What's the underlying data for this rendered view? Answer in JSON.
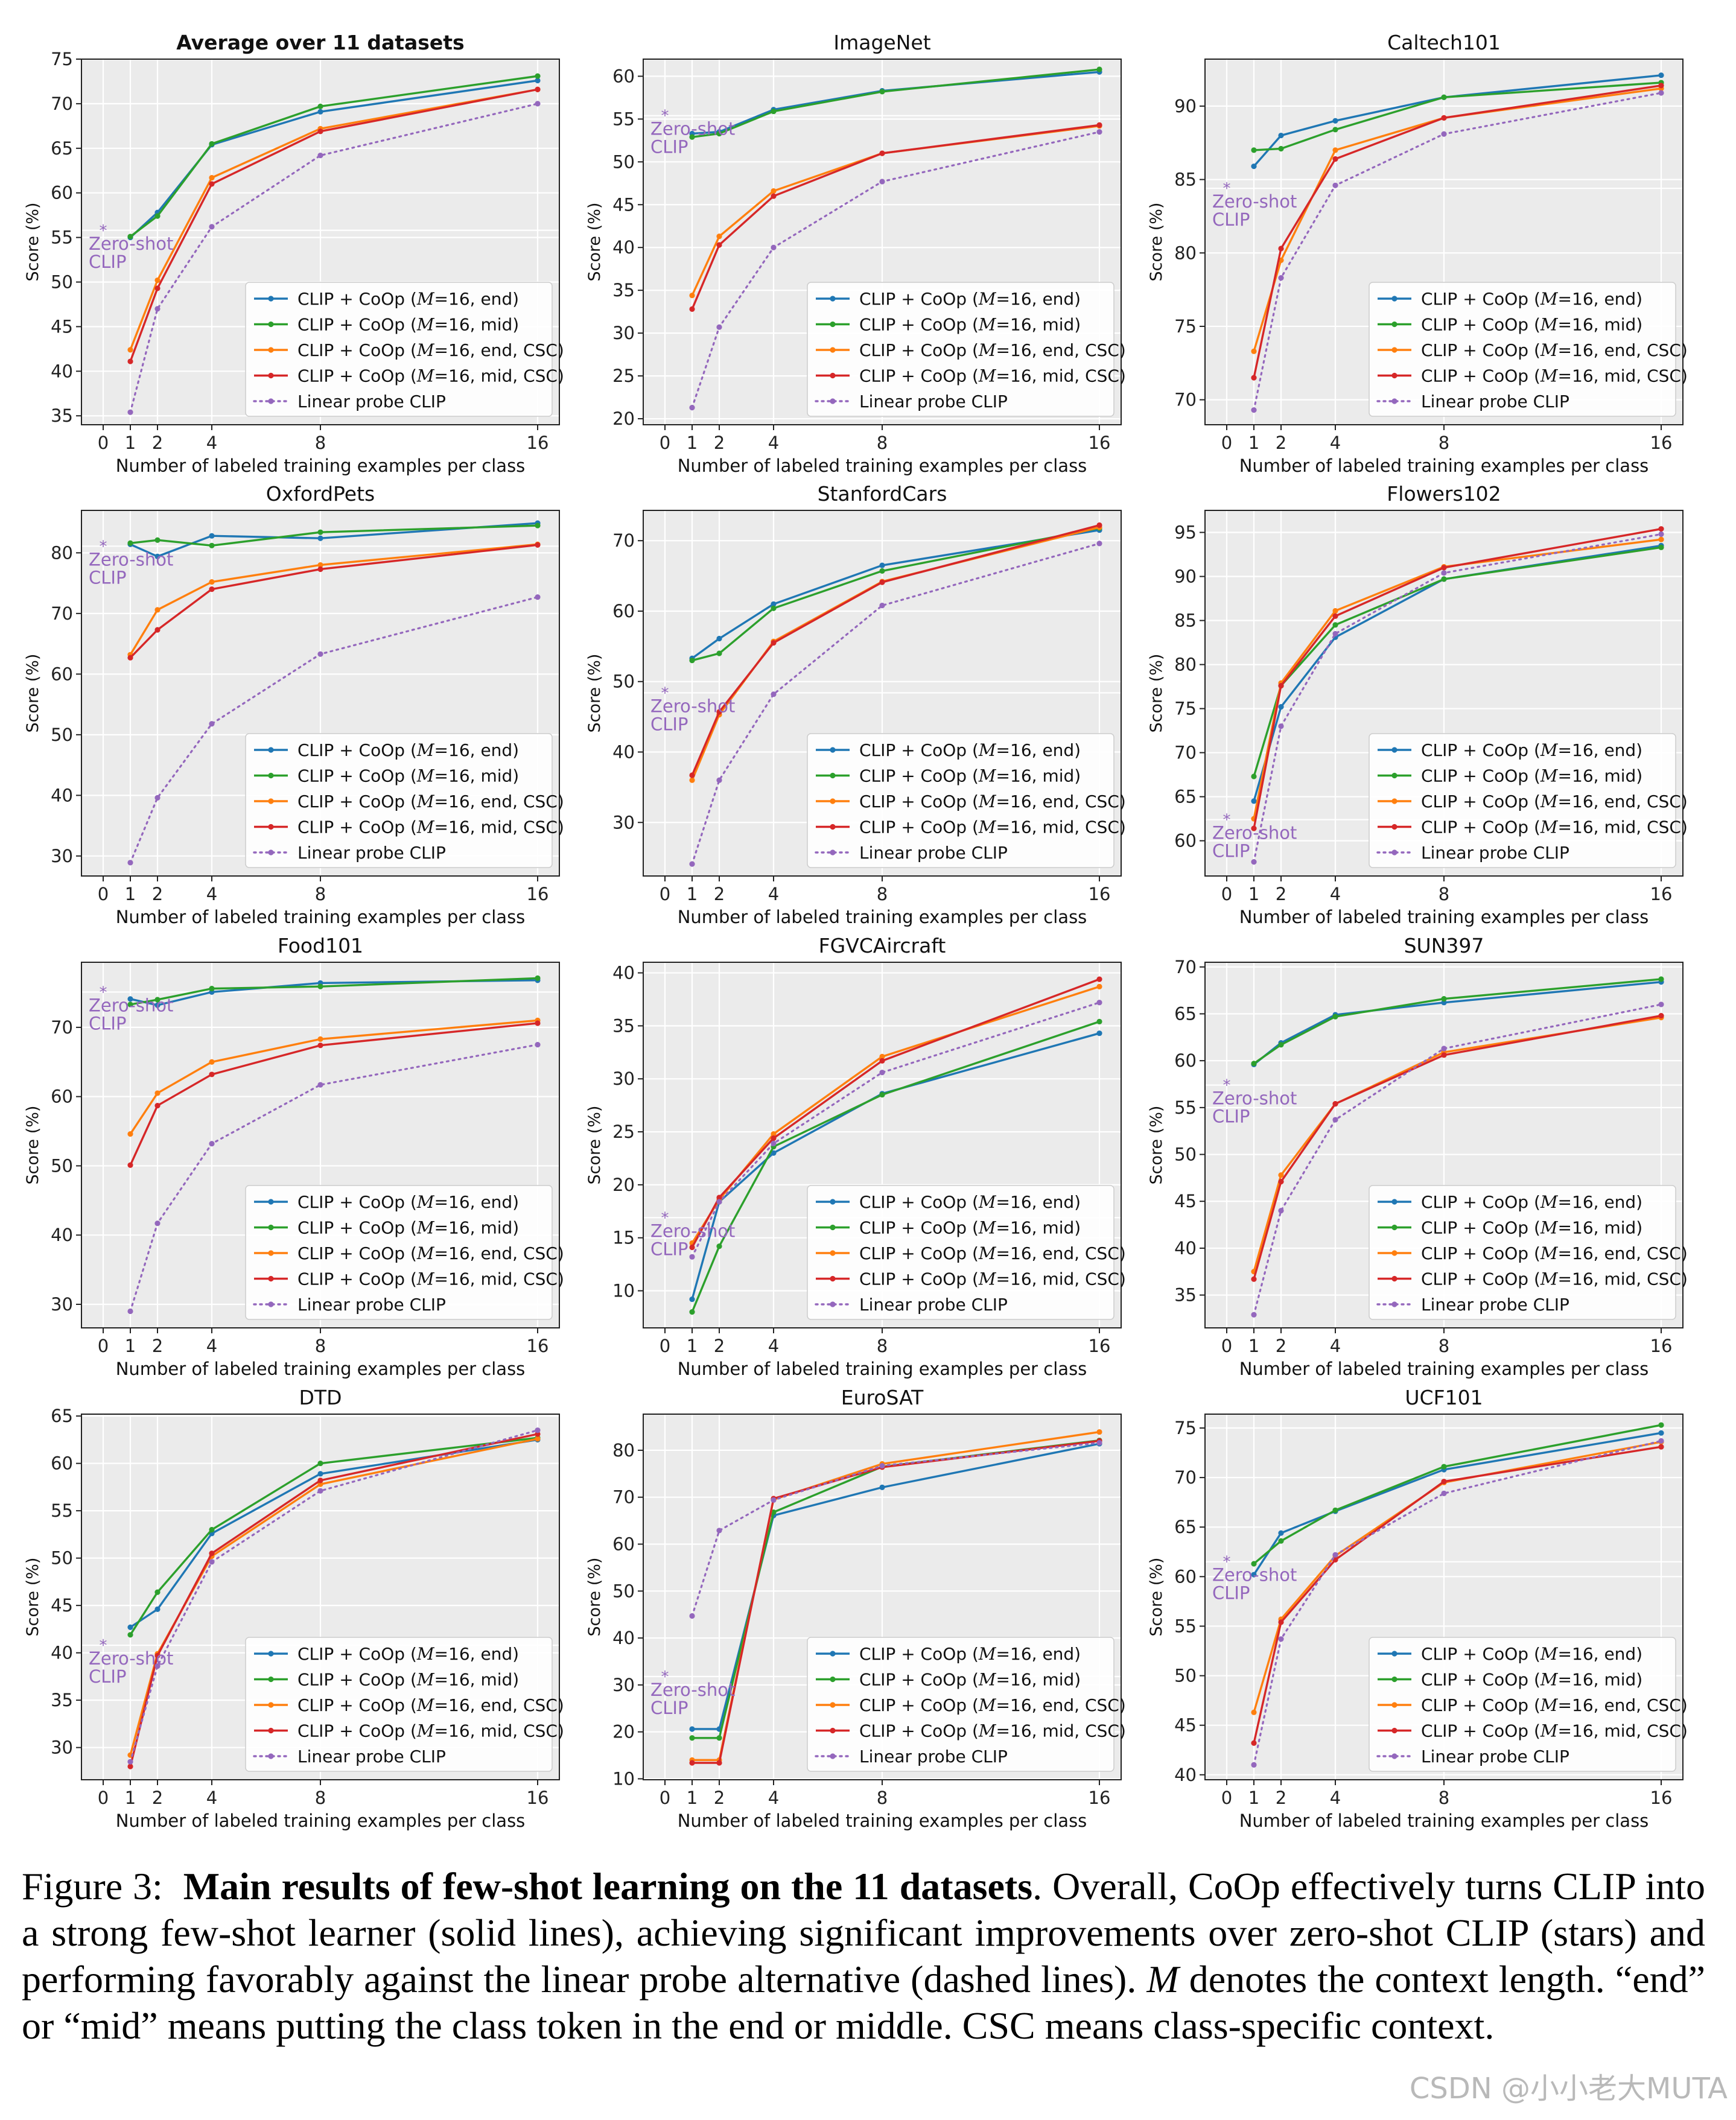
{
  "legend_labels": [
    {
      "pre": "CLIP + CoOp (",
      "var": "M",
      "post": "=16, end)"
    },
    {
      "pre": "CLIP + CoOp (",
      "var": "M",
      "post": "=16, mid)"
    },
    {
      "pre": "CLIP + CoOp (",
      "var": "M",
      "post": "=16, end, CSC)"
    },
    {
      "pre": "CLIP + CoOp (",
      "var": "M",
      "post": "=16, mid, CSC)"
    },
    {
      "pre": "Linear probe CLIP",
      "var": "",
      "post": ""
    }
  ],
  "series_colors": [
    "#1f77b4",
    "#2ca02c",
    "#ff7f0e",
    "#d62728",
    "#9467bd"
  ],
  "zero_shot_label": [
    "Zero-shot",
    "CLIP"
  ],
  "chart_data": [
    {
      "type": "line",
      "title": "Average over 11 datasets",
      "title_bold": true,
      "xlabel": "Number of labeled training examples per class",
      "ylabel": "Score (%)",
      "x": [
        1,
        2,
        4,
        8,
        16
      ],
      "xticks": [
        0,
        1,
        2,
        4,
        8,
        16
      ],
      "xlim": [
        -0.8,
        16.8
      ],
      "ylim": [
        34,
        75
      ],
      "yticks": [
        35,
        40,
        45,
        50,
        55,
        60,
        65,
        70,
        75
      ],
      "zero_shot": 55.8,
      "series": [
        {
          "values": [
            55.0,
            57.8,
            65.4,
            69.1,
            72.6
          ]
        },
        {
          "values": [
            55.1,
            57.4,
            65.5,
            69.7,
            73.1
          ]
        },
        {
          "values": [
            42.4,
            50.2,
            61.7,
            67.2,
            71.6
          ]
        },
        {
          "values": [
            41.1,
            49.3,
            61.0,
            66.9,
            71.6
          ]
        },
        {
          "values": [
            35.4,
            47.0,
            56.2,
            64.2,
            70.0
          ]
        }
      ]
    },
    {
      "type": "line",
      "title": "ImageNet",
      "xlabel": "Number of labeled training examples per class",
      "ylabel": "Score (%)",
      "x": [
        1,
        2,
        4,
        8,
        16
      ],
      "xticks": [
        0,
        1,
        2,
        4,
        8,
        16
      ],
      "xlim": [
        -0.8,
        16.8
      ],
      "ylim": [
        19.3,
        62
      ],
      "yticks": [
        20,
        25,
        30,
        35,
        40,
        45,
        50,
        55,
        60
      ],
      "zero_shot": 55.4,
      "series": [
        {
          "values": [
            53.3,
            53.5,
            56.1,
            58.3,
            60.5
          ]
        },
        {
          "values": [
            52.9,
            53.3,
            55.9,
            58.2,
            60.8
          ]
        },
        {
          "values": [
            34.4,
            41.3,
            46.6,
            51.0,
            54.2
          ]
        },
        {
          "values": [
            32.8,
            40.3,
            46.0,
            51.0,
            54.3
          ]
        },
        {
          "values": [
            21.3,
            30.7,
            40.0,
            47.7,
            53.5
          ]
        }
      ]
    },
    {
      "type": "line",
      "title": "Caltech101",
      "xlabel": "Number of labeled training examples per class",
      "ylabel": "Score (%)",
      "x": [
        1,
        2,
        4,
        8,
        16
      ],
      "xticks": [
        0,
        1,
        2,
        4,
        8,
        16
      ],
      "xlim": [
        -0.8,
        16.8
      ],
      "ylim": [
        68.3,
        93.2
      ],
      "yticks": [
        70,
        75,
        80,
        85,
        90
      ],
      "zero_shot": 84.4,
      "series": [
        {
          "values": [
            85.9,
            88.0,
            89.0,
            90.6,
            92.1
          ]
        },
        {
          "values": [
            87.0,
            87.1,
            88.4,
            90.6,
            91.6
          ]
        },
        {
          "values": [
            73.3,
            79.5,
            87.0,
            89.2,
            91.2
          ]
        },
        {
          "values": [
            71.5,
            80.3,
            86.4,
            89.2,
            91.4
          ]
        },
        {
          "values": [
            69.3,
            78.3,
            84.6,
            88.1,
            90.9
          ]
        }
      ]
    },
    {
      "type": "line",
      "title": "OxfordPets",
      "xlabel": "Number of labeled training examples per class",
      "ylabel": "Score (%)",
      "x": [
        1,
        2,
        4,
        8,
        16
      ],
      "xticks": [
        0,
        1,
        2,
        4,
        8,
        16
      ],
      "xlim": [
        -0.8,
        16.8
      ],
      "ylim": [
        26.7,
        87
      ],
      "yticks": [
        30,
        40,
        50,
        60,
        70,
        80
      ],
      "zero_shot": 81.1,
      "series": [
        {
          "values": [
            81.4,
            79.4,
            82.8,
            82.4,
            84.9
          ]
        },
        {
          "values": [
            81.6,
            82.1,
            81.2,
            83.4,
            84.5
          ]
        },
        {
          "values": [
            63.2,
            70.6,
            75.2,
            78.0,
            81.4
          ]
        },
        {
          "values": [
            62.7,
            67.3,
            74.0,
            77.3,
            81.3
          ]
        },
        {
          "values": [
            28.9,
            39.6,
            51.8,
            63.3,
            72.7
          ]
        }
      ]
    },
    {
      "type": "line",
      "title": "StanfordCars",
      "xlabel": "Number of labeled training examples per class",
      "ylabel": "Score (%)",
      "x": [
        1,
        2,
        4,
        8,
        16
      ],
      "xticks": [
        0,
        1,
        2,
        4,
        8,
        16
      ],
      "xlim": [
        -0.8,
        16.8
      ],
      "ylim": [
        22.4,
        74.3
      ],
      "yticks": [
        30,
        40,
        50,
        60,
        70
      ],
      "zero_shot": 48.4,
      "series": [
        {
          "values": [
            53.3,
            56.1,
            61.0,
            66.5,
            71.5
          ]
        },
        {
          "values": [
            53.0,
            54.0,
            60.4,
            65.7,
            71.8
          ]
        },
        {
          "values": [
            36.0,
            45.3,
            55.7,
            64.2,
            71.9
          ]
        },
        {
          "values": [
            36.7,
            45.7,
            55.5,
            64.1,
            72.2
          ]
        },
        {
          "values": [
            24.1,
            36.0,
            48.2,
            60.8,
            69.6
          ]
        }
      ]
    },
    {
      "type": "line",
      "title": "Flowers102",
      "xlabel": "Number of labeled training examples per class",
      "ylabel": "Score (%)",
      "x": [
        1,
        2,
        4,
        8,
        16
      ],
      "xticks": [
        0,
        1,
        2,
        4,
        8,
        16
      ],
      "xlim": [
        -0.8,
        16.8
      ],
      "ylim": [
        56,
        97.5
      ],
      "yticks": [
        60,
        65,
        70,
        75,
        80,
        85,
        90,
        95
      ],
      "zero_shot": 62.4,
      "series": [
        {
          "values": [
            64.5,
            75.2,
            83.1,
            89.7,
            93.5
          ]
        },
        {
          "values": [
            67.3,
            77.6,
            84.5,
            89.7,
            93.3
          ]
        },
        {
          "values": [
            62.5,
            77.9,
            86.1,
            91.1,
            94.2
          ]
        },
        {
          "values": [
            61.4,
            77.6,
            85.5,
            91.0,
            95.4
          ]
        },
        {
          "values": [
            57.6,
            73.0,
            83.5,
            90.4,
            94.8
          ]
        }
      ]
    },
    {
      "type": "line",
      "title": "Food101",
      "xlabel": "Number of labeled training examples per class",
      "ylabel": "Score (%)",
      "x": [
        1,
        2,
        4,
        8,
        16
      ],
      "xticks": [
        0,
        1,
        2,
        4,
        8,
        16
      ],
      "xlim": [
        -0.8,
        16.8
      ],
      "ylim": [
        26.6,
        79.4
      ],
      "yticks": [
        30,
        40,
        50,
        60,
        70
      ],
      "zero_shot": 75.1,
      "series": [
        {
          "values": [
            74.1,
            73.2,
            75.1,
            76.4,
            76.8
          ]
        },
        {
          "values": [
            73.3,
            74.0,
            75.6,
            75.9,
            77.1
          ]
        },
        {
          "values": [
            54.6,
            60.5,
            65.0,
            68.3,
            71.0
          ]
        },
        {
          "values": [
            50.1,
            58.7,
            63.2,
            67.4,
            70.6
          ]
        },
        {
          "values": [
            29.0,
            41.7,
            53.2,
            61.7,
            67.5
          ]
        }
      ]
    },
    {
      "type": "line",
      "title": "FGVCAircraft",
      "xlabel": "Number of labeled training examples per class",
      "ylabel": "Score (%)",
      "x": [
        1,
        2,
        4,
        8,
        16
      ],
      "xticks": [
        0,
        1,
        2,
        4,
        8,
        16
      ],
      "xlim": [
        -0.8,
        16.8
      ],
      "ylim": [
        6.5,
        41
      ],
      "yticks": [
        10,
        15,
        20,
        25,
        30,
        35,
        40
      ],
      "zero_shot": 16.9,
      "series": [
        {
          "values": [
            9.2,
            18.4,
            23.0,
            28.6,
            34.3
          ]
        },
        {
          "values": [
            8.0,
            14.2,
            23.6,
            28.5,
            35.4
          ]
        },
        {
          "values": [
            14.5,
            18.6,
            24.8,
            32.1,
            38.7
          ]
        },
        {
          "values": [
            14.1,
            18.8,
            24.4,
            31.7,
            39.4
          ]
        },
        {
          "values": [
            13.2,
            18.4,
            23.9,
            30.6,
            37.2
          ]
        }
      ]
    },
    {
      "type": "line",
      "title": "SUN397",
      "xlabel": "Number of labeled training examples per class",
      "ylabel": "Score (%)",
      "x": [
        1,
        2,
        4,
        8,
        16
      ],
      "xticks": [
        0,
        1,
        2,
        4,
        8,
        16
      ],
      "xlim": [
        -0.8,
        16.8
      ],
      "ylim": [
        31.5,
        70.5
      ],
      "yticks": [
        35,
        40,
        45,
        50,
        55,
        60,
        65,
        70
      ],
      "zero_shot": 57.4,
      "series": [
        {
          "values": [
            59.6,
            61.9,
            64.9,
            66.2,
            68.4
          ]
        },
        {
          "values": [
            59.7,
            61.7,
            64.7,
            66.6,
            68.7
          ]
        },
        {
          "values": [
            37.5,
            47.8,
            55.4,
            60.9,
            64.6
          ]
        },
        {
          "values": [
            36.7,
            47.1,
            55.4,
            60.6,
            64.8
          ]
        },
        {
          "values": [
            32.9,
            44.0,
            53.7,
            61.3,
            66.0
          ]
        }
      ]
    },
    {
      "type": "line",
      "title": "DTD",
      "xlabel": "Number of labeled training examples per class",
      "ylabel": "Score (%)",
      "x": [
        1,
        2,
        4,
        8,
        16
      ],
      "xticks": [
        0,
        1,
        2,
        4,
        8,
        16
      ],
      "xlim": [
        -0.8,
        16.8
      ],
      "ylim": [
        26.6,
        65.2
      ],
      "yticks": [
        30,
        35,
        40,
        45,
        50,
        55,
        60,
        65
      ],
      "zero_shot": 40.8,
      "series": [
        {
          "values": [
            42.7,
            44.6,
            52.6,
            58.9,
            62.5
          ]
        },
        {
          "values": [
            41.9,
            46.4,
            53.0,
            60.0,
            62.7
          ]
        },
        {
          "values": [
            29.2,
            39.9,
            50.2,
            57.8,
            62.6
          ]
        },
        {
          "values": [
            28.0,
            39.7,
            50.5,
            58.2,
            63.1
          ]
        },
        {
          "values": [
            28.5,
            38.6,
            49.6,
            57.1,
            63.5
          ]
        }
      ]
    },
    {
      "type": "line",
      "title": "EuroSAT",
      "xlabel": "Number of labeled training examples per class",
      "ylabel": "Score (%)",
      "x": [
        1,
        2,
        4,
        8,
        16
      ],
      "xticks": [
        0,
        1,
        2,
        4,
        8,
        16
      ],
      "xlim": [
        -0.8,
        16.8
      ],
      "ylim": [
        9.8,
        87.7
      ],
      "yticks": [
        10,
        20,
        30,
        40,
        50,
        60,
        70,
        80
      ],
      "zero_shot": 31.8,
      "series": [
        {
          "values": [
            20.6,
            20.6,
            66.1,
            72.1,
            81.4
          ]
        },
        {
          "values": [
            18.7,
            18.7,
            66.8,
            76.5,
            82.1
          ]
        },
        {
          "values": [
            14.0,
            14.0,
            69.5,
            77.1,
            83.9
          ]
        },
        {
          "values": [
            13.4,
            13.4,
            69.7,
            76.4,
            82.0
          ]
        },
        {
          "values": [
            44.7,
            62.9,
            69.4,
            76.7,
            81.6
          ]
        }
      ]
    },
    {
      "type": "line",
      "title": "UCF101",
      "xlabel": "Number of labeled training examples per class",
      "ylabel": "Score (%)",
      "x": [
        1,
        2,
        4,
        8,
        16
      ],
      "xticks": [
        0,
        1,
        2,
        4,
        8,
        16
      ],
      "xlim": [
        -0.8,
        16.8
      ],
      "ylim": [
        39.5,
        76.4
      ],
      "yticks": [
        40,
        45,
        50,
        55,
        60,
        65,
        70,
        75
      ],
      "zero_shot": 61.5,
      "series": [
        {
          "values": [
            60.2,
            64.4,
            66.6,
            70.8,
            74.5
          ]
        },
        {
          "values": [
            61.3,
            63.6,
            66.7,
            71.1,
            75.3
          ]
        },
        {
          "values": [
            46.3,
            55.7,
            62.1,
            69.5,
            73.6
          ]
        },
        {
          "values": [
            43.2,
            55.4,
            61.7,
            69.6,
            73.1
          ]
        },
        {
          "values": [
            41.0,
            53.7,
            62.2,
            68.4,
            73.7
          ]
        }
      ]
    }
  ],
  "caption": {
    "fig_label": "Figure 3:",
    "bold": "Main results of few-shot learning on the 11 datasets",
    "text_1": ". Overall, CoOp effectively turns CLIP into a strong few-shot learner (solid lines), achieving significant improvements over zero-shot CLIP (stars) and performing favorably against the linear probe alternative (dashed lines). ",
    "math": "M",
    "text_2": " denotes the context length. “end” or “mid” means putting the class token in the end or middle. CSC means class-specific context."
  },
  "watermark": "CSDN @小小老大MUTA"
}
